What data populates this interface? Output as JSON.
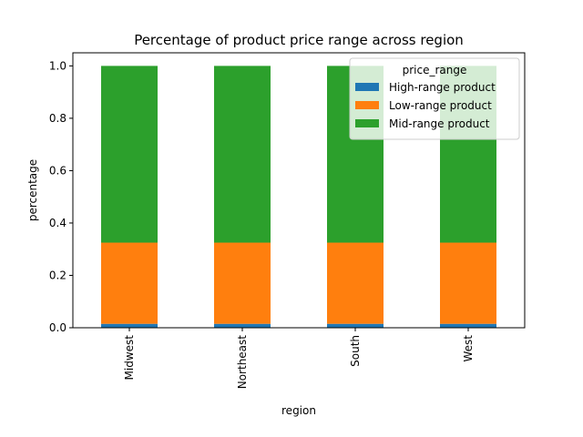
{
  "chart_data": {
    "type": "bar",
    "stacked": true,
    "title": "Percentage of product price range across region",
    "xlabel": "region",
    "ylabel": "percentage",
    "categories": [
      "Midwest",
      "Northeast",
      "South",
      "West"
    ],
    "series": [
      {
        "name": "High-range product",
        "values": [
          0.015,
          0.015,
          0.015,
          0.015
        ],
        "color": "#1f77b4"
      },
      {
        "name": "Low-range product",
        "values": [
          0.31,
          0.31,
          0.31,
          0.31
        ],
        "color": "#ff7f0e"
      },
      {
        "name": "Mid-range product",
        "values": [
          0.675,
          0.675,
          0.675,
          0.675
        ],
        "color": "#2ca02c"
      }
    ],
    "ylim": [
      0,
      1.05
    ],
    "yticks": [
      "0.0",
      "0.2",
      "0.4",
      "0.6",
      "0.8",
      "1.0"
    ],
    "ytick_values": [
      0.0,
      0.2,
      0.4,
      0.6,
      0.8,
      1.0
    ],
    "grid": false,
    "legend": {
      "title": "price_range",
      "placement": "top-right"
    }
  }
}
